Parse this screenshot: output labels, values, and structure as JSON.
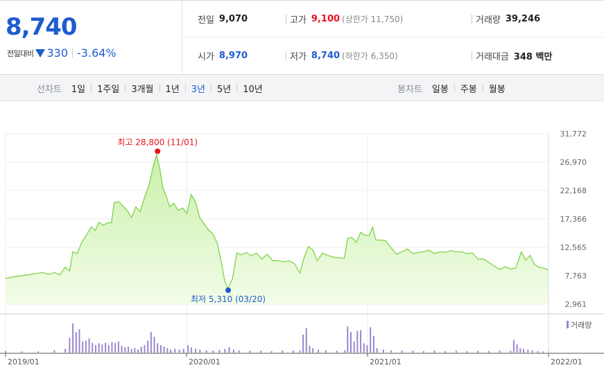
{
  "summary": {
    "current_price": "8,740",
    "change_label": "전일대비",
    "change_amount": "330",
    "change_percent": "-3.64%",
    "prev_close_label": "전일",
    "prev_close": "9,070",
    "open_label": "시가",
    "open": "8,970",
    "high_label": "고가",
    "high": "9,100",
    "upper_limit": "(상한가 11,750)",
    "low_label": "저가",
    "low": "8,740",
    "lower_limit": "(하한가 6,350)",
    "volume_label": "거래량",
    "volume": "39,246",
    "amount_label": "거래대금",
    "amount": "348 백만"
  },
  "period_tabs": {
    "title": "선차트",
    "items": [
      "1일",
      "1주일",
      "3개월",
      "1년",
      "3년",
      "5년",
      "10년"
    ],
    "active": "3년"
  },
  "candle_tabs": {
    "title": "봉차트",
    "items": [
      "일봉",
      "주봉",
      "월봉"
    ]
  },
  "chart_data": {
    "type": "area",
    "title": "",
    "y_ticks": [
      "31,772",
      "26,970",
      "22,168",
      "17,366",
      "12,565",
      "7,763",
      "2,961"
    ],
    "ylim": [
      2961,
      31772
    ],
    "x_ticks": [
      "2019/01",
      "2020/01",
      "2021/01",
      "2022/01"
    ],
    "x_range": [
      "2019/01",
      "2022/01"
    ],
    "max_annotation": "최고 28,800 (11/01)",
    "min_annotation": "최저 5,310 (03/20)",
    "max_point": {
      "t": 0.28,
      "value": 28800
    },
    "min_point": {
      "t": 0.41,
      "value": 5310
    },
    "legend": "거래량",
    "colors": {
      "line": "#7ed34a",
      "fill_top": "#c9f0a8",
      "fill_bottom": "#f3fce9",
      "volume": "#9a86cc",
      "max": "#e8121d",
      "min": "#1f5ccf"
    },
    "price_series": [
      [
        0.0,
        7300
      ],
      [
        0.012,
        7500
      ],
      [
        0.025,
        7700
      ],
      [
        0.04,
        7900
      ],
      [
        0.055,
        8100
      ],
      [
        0.068,
        8300
      ],
      [
        0.08,
        8000
      ],
      [
        0.09,
        8300
      ],
      [
        0.1,
        7900
      ],
      [
        0.11,
        9200
      ],
      [
        0.118,
        8600
      ],
      [
        0.124,
        11800
      ],
      [
        0.132,
        11500
      ],
      [
        0.14,
        13300
      ],
      [
        0.15,
        14800
      ],
      [
        0.158,
        16000
      ],
      [
        0.165,
        15400
      ],
      [
        0.172,
        16800
      ],
      [
        0.18,
        16300
      ],
      [
        0.188,
        16700
      ],
      [
        0.195,
        16700
      ],
      [
        0.2,
        20100
      ],
      [
        0.208,
        20300
      ],
      [
        0.216,
        19600
      ],
      [
        0.224,
        18800
      ],
      [
        0.232,
        17600
      ],
      [
        0.24,
        19400
      ],
      [
        0.248,
        18600
      ],
      [
        0.256,
        21000
      ],
      [
        0.264,
        23000
      ],
      [
        0.272,
        26300
      ],
      [
        0.278,
        28200
      ],
      [
        0.284,
        25900
      ],
      [
        0.29,
        22500
      ],
      [
        0.296,
        21200
      ],
      [
        0.302,
        19400
      ],
      [
        0.31,
        20000
      ],
      [
        0.318,
        18800
      ],
      [
        0.326,
        19200
      ],
      [
        0.334,
        18300
      ],
      [
        0.342,
        21500
      ],
      [
        0.35,
        20200
      ],
      [
        0.358,
        17500
      ],
      [
        0.366,
        16500
      ],
      [
        0.374,
        15500
      ],
      [
        0.382,
        14800
      ],
      [
        0.39,
        13200
      ],
      [
        0.397,
        10200
      ],
      [
        0.404,
        6700
      ],
      [
        0.41,
        5600
      ],
      [
        0.418,
        7300
      ],
      [
        0.426,
        11600
      ],
      [
        0.434,
        11300
      ],
      [
        0.444,
        11700
      ],
      [
        0.452,
        11100
      ],
      [
        0.462,
        11600
      ],
      [
        0.472,
        10600
      ],
      [
        0.482,
        11400
      ],
      [
        0.492,
        10300
      ],
      [
        0.502,
        10300
      ],
      [
        0.512,
        10100
      ],
      [
        0.522,
        10300
      ],
      [
        0.532,
        9800
      ],
      [
        0.542,
        8200
      ],
      [
        0.55,
        10900
      ],
      [
        0.558,
        12700
      ],
      [
        0.566,
        12100
      ],
      [
        0.574,
        10300
      ],
      [
        0.584,
        11600
      ],
      [
        0.594,
        11200
      ],
      [
        0.604,
        10900
      ],
      [
        0.614,
        10800
      ],
      [
        0.624,
        10700
      ],
      [
        0.63,
        14100
      ],
      [
        0.638,
        14200
      ],
      [
        0.646,
        13400
      ],
      [
        0.654,
        15100
      ],
      [
        0.662,
        14600
      ],
      [
        0.67,
        14600
      ],
      [
        0.676,
        16000
      ],
      [
        0.682,
        13800
      ],
      [
        0.69,
        13800
      ],
      [
        0.7,
        13700
      ],
      [
        0.71,
        12500
      ],
      [
        0.72,
        11400
      ],
      [
        0.73,
        11800
      ],
      [
        0.74,
        12300
      ],
      [
        0.75,
        11500
      ],
      [
        0.76,
        11700
      ],
      [
        0.77,
        11800
      ],
      [
        0.78,
        12100
      ],
      [
        0.79,
        11500
      ],
      [
        0.8,
        11800
      ],
      [
        0.81,
        11700
      ],
      [
        0.82,
        12000
      ],
      [
        0.83,
        11800
      ],
      [
        0.84,
        11800
      ],
      [
        0.85,
        11500
      ],
      [
        0.86,
        11600
      ],
      [
        0.87,
        10600
      ],
      [
        0.88,
        10600
      ],
      [
        0.89,
        10000
      ],
      [
        0.9,
        9400
      ],
      [
        0.91,
        8800
      ],
      [
        0.92,
        9300
      ],
      [
        0.93,
        8900
      ],
      [
        0.94,
        9100
      ],
      [
        0.95,
        11800
      ],
      [
        0.958,
        10400
      ],
      [
        0.966,
        11200
      ],
      [
        0.974,
        9700
      ],
      [
        0.982,
        9200
      ],
      [
        0.99,
        9100
      ],
      [
        1.0,
        8740
      ]
    ],
    "volume_series": [
      [
        0.0,
        0.04
      ],
      [
        0.03,
        0.03
      ],
      [
        0.06,
        0.03
      ],
      [
        0.09,
        0.06
      ],
      [
        0.11,
        0.1
      ],
      [
        0.118,
        0.4
      ],
      [
        0.124,
        0.78
      ],
      [
        0.13,
        0.55
      ],
      [
        0.136,
        0.62
      ],
      [
        0.142,
        0.3
      ],
      [
        0.148,
        0.32
      ],
      [
        0.154,
        0.38
      ],
      [
        0.16,
        0.26
      ],
      [
        0.166,
        0.2
      ],
      [
        0.172,
        0.25
      ],
      [
        0.178,
        0.22
      ],
      [
        0.184,
        0.26
      ],
      [
        0.19,
        0.2
      ],
      [
        0.196,
        0.28
      ],
      [
        0.202,
        0.26
      ],
      [
        0.208,
        0.3
      ],
      [
        0.214,
        0.18
      ],
      [
        0.22,
        0.14
      ],
      [
        0.226,
        0.16
      ],
      [
        0.232,
        0.1
      ],
      [
        0.238,
        0.12
      ],
      [
        0.244,
        0.08
      ],
      [
        0.25,
        0.15
      ],
      [
        0.256,
        0.2
      ],
      [
        0.262,
        0.32
      ],
      [
        0.268,
        0.55
      ],
      [
        0.274,
        0.42
      ],
      [
        0.28,
        0.25
      ],
      [
        0.286,
        0.2
      ],
      [
        0.292,
        0.16
      ],
      [
        0.298,
        0.12
      ],
      [
        0.304,
        0.08
      ],
      [
        0.312,
        0.1
      ],
      [
        0.32,
        0.08
      ],
      [
        0.328,
        0.1
      ],
      [
        0.336,
        0.2
      ],
      [
        0.342,
        0.14
      ],
      [
        0.35,
        0.1
      ],
      [
        0.358,
        0.08
      ],
      [
        0.37,
        0.06
      ],
      [
        0.382,
        0.05
      ],
      [
        0.394,
        0.07
      ],
      [
        0.404,
        0.1
      ],
      [
        0.412,
        0.15
      ],
      [
        0.42,
        0.08
      ],
      [
        0.43,
        0.06
      ],
      [
        0.45,
        0.05
      ],
      [
        0.47,
        0.05
      ],
      [
        0.49,
        0.04
      ],
      [
        0.51,
        0.05
      ],
      [
        0.53,
        0.05
      ],
      [
        0.542,
        0.06
      ],
      [
        0.548,
        0.48
      ],
      [
        0.554,
        0.65
      ],
      [
        0.56,
        0.18
      ],
      [
        0.566,
        0.12
      ],
      [
        0.576,
        0.08
      ],
      [
        0.59,
        0.06
      ],
      [
        0.61,
        0.05
      ],
      [
        0.625,
        0.06
      ],
      [
        0.63,
        0.7
      ],
      [
        0.636,
        0.55
      ],
      [
        0.642,
        0.3
      ],
      [
        0.648,
        0.58
      ],
      [
        0.654,
        0.6
      ],
      [
        0.66,
        0.25
      ],
      [
        0.666,
        0.2
      ],
      [
        0.672,
        0.68
      ],
      [
        0.678,
        0.45
      ],
      [
        0.684,
        0.12
      ],
      [
        0.696,
        0.08
      ],
      [
        0.71,
        0.06
      ],
      [
        0.73,
        0.05
      ],
      [
        0.75,
        0.05
      ],
      [
        0.77,
        0.04
      ],
      [
        0.79,
        0.05
      ],
      [
        0.81,
        0.04
      ],
      [
        0.83,
        0.05
      ],
      [
        0.85,
        0.04
      ],
      [
        0.87,
        0.05
      ],
      [
        0.89,
        0.04
      ],
      [
        0.91,
        0.05
      ],
      [
        0.93,
        0.05
      ],
      [
        0.936,
        0.34
      ],
      [
        0.942,
        0.22
      ],
      [
        0.948,
        0.12
      ],
      [
        0.954,
        0.1
      ],
      [
        0.962,
        0.08
      ],
      [
        0.97,
        0.06
      ],
      [
        0.98,
        0.04
      ],
      [
        0.99,
        0.03
      ],
      [
        1.0,
        0.03
      ]
    ]
  }
}
